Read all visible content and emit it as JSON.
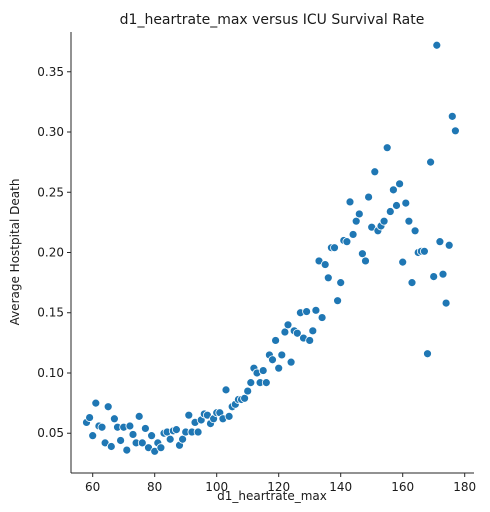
{
  "chart_data": {
    "type": "scatter",
    "title": "d1_heartrate_max versus ICU Survival Rate",
    "xlabel": "d1_heartrate_max",
    "ylabel": "Average Hostpital Death",
    "xlim": [
      53,
      183
    ],
    "ylim": [
      0.017,
      0.383
    ],
    "xticks": [
      60,
      80,
      100,
      120,
      140,
      160,
      180
    ],
    "yticks": [
      0.05,
      0.1,
      0.15,
      0.2,
      0.25,
      0.3,
      0.35
    ],
    "grid": false,
    "legend": "none",
    "color": "#1f77b4",
    "points": [
      [
        58,
        0.059
      ],
      [
        59,
        0.063
      ],
      [
        60,
        0.048
      ],
      [
        61,
        0.075
      ],
      [
        62,
        0.056
      ],
      [
        63,
        0.055
      ],
      [
        64,
        0.042
      ],
      [
        65,
        0.072
      ],
      [
        66,
        0.039
      ],
      [
        67,
        0.062
      ],
      [
        68,
        0.055
      ],
      [
        69,
        0.044
      ],
      [
        70,
        0.055
      ],
      [
        71,
        0.036
      ],
      [
        72,
        0.056
      ],
      [
        73,
        0.049
      ],
      [
        74,
        0.042
      ],
      [
        75,
        0.064
      ],
      [
        76,
        0.042
      ],
      [
        77,
        0.054
      ],
      [
        78,
        0.038
      ],
      [
        79,
        0.048
      ],
      [
        80,
        0.035
      ],
      [
        81,
        0.042
      ],
      [
        82,
        0.038
      ],
      [
        83,
        0.05
      ],
      [
        84,
        0.051
      ],
      [
        85,
        0.045
      ],
      [
        86,
        0.052
      ],
      [
        87,
        0.053
      ],
      [
        88,
        0.04
      ],
      [
        89,
        0.045
      ],
      [
        90,
        0.051
      ],
      [
        91,
        0.065
      ],
      [
        92,
        0.051
      ],
      [
        93,
        0.059
      ],
      [
        94,
        0.051
      ],
      [
        95,
        0.061
      ],
      [
        96,
        0.066
      ],
      [
        97,
        0.065
      ],
      [
        98,
        0.058
      ],
      [
        99,
        0.062
      ],
      [
        100,
        0.067
      ],
      [
        101,
        0.067
      ],
      [
        102,
        0.062
      ],
      [
        103,
        0.086
      ],
      [
        104,
        0.064
      ],
      [
        105,
        0.072
      ],
      [
        106,
        0.074
      ],
      [
        107,
        0.078
      ],
      [
        108,
        0.078
      ],
      [
        109,
        0.079
      ],
      [
        110,
        0.085
      ],
      [
        111,
        0.092
      ],
      [
        112,
        0.104
      ],
      [
        113,
        0.1
      ],
      [
        114,
        0.092
      ],
      [
        115,
        0.102
      ],
      [
        116,
        0.092
      ],
      [
        117,
        0.115
      ],
      [
        118,
        0.111
      ],
      [
        119,
        0.127
      ],
      [
        120,
        0.104
      ],
      [
        121,
        0.115
      ],
      [
        122,
        0.134
      ],
      [
        123,
        0.14
      ],
      [
        124,
        0.109
      ],
      [
        125,
        0.135
      ],
      [
        126,
        0.133
      ],
      [
        127,
        0.15
      ],
      [
        128,
        0.129
      ],
      [
        129,
        0.151
      ],
      [
        130,
        0.127
      ],
      [
        131,
        0.135
      ],
      [
        132,
        0.152
      ],
      [
        133,
        0.193
      ],
      [
        134,
        0.146
      ],
      [
        135,
        0.19
      ],
      [
        136,
        0.179
      ],
      [
        137,
        0.204
      ],
      [
        138,
        0.204
      ],
      [
        139,
        0.16
      ],
      [
        140,
        0.175
      ],
      [
        141,
        0.21
      ],
      [
        142,
        0.209
      ],
      [
        143,
        0.242
      ],
      [
        144,
        0.215
      ],
      [
        145,
        0.226
      ],
      [
        146,
        0.232
      ],
      [
        147,
        0.199
      ],
      [
        148,
        0.193
      ],
      [
        149,
        0.246
      ],
      [
        150,
        0.221
      ],
      [
        151,
        0.267
      ],
      [
        152,
        0.218
      ],
      [
        153,
        0.222
      ],
      [
        154,
        0.226
      ],
      [
        155,
        0.287
      ],
      [
        156,
        0.234
      ],
      [
        157,
        0.252
      ],
      [
        158,
        0.239
      ],
      [
        159,
        0.257
      ],
      [
        160,
        0.192
      ],
      [
        161,
        0.241
      ],
      [
        162,
        0.226
      ],
      [
        163,
        0.175
      ],
      [
        164,
        0.218
      ],
      [
        165,
        0.2
      ],
      [
        166,
        0.201
      ],
      [
        167,
        0.201
      ],
      [
        168,
        0.116
      ],
      [
        169,
        0.275
      ],
      [
        170,
        0.18
      ],
      [
        171,
        0.372
      ],
      [
        172,
        0.209
      ],
      [
        173,
        0.182
      ],
      [
        174,
        0.158
      ],
      [
        175,
        0.206
      ],
      [
        176,
        0.313
      ],
      [
        177,
        0.301
      ]
    ]
  }
}
